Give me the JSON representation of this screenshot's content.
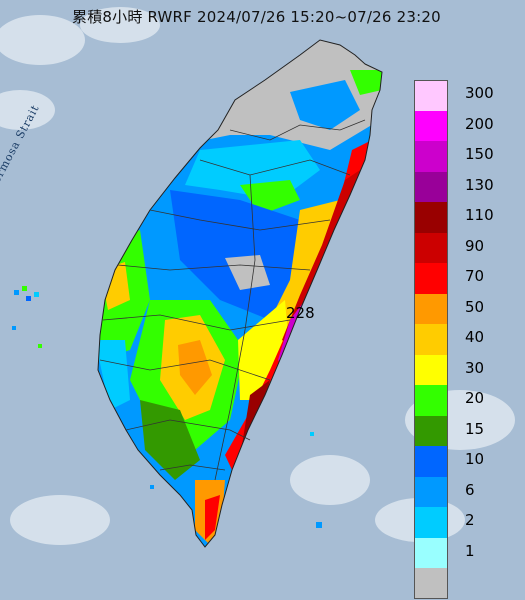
{
  "title": "累積8小時 RWRF 2024/07/26 15:20~07/26 23:20",
  "strait_label": "Formosa Strait",
  "peak_label": "228",
  "legend": [
    {
      "label": "300",
      "color": "#ffc8ff"
    },
    {
      "label": "200",
      "color": "#ff00ff"
    },
    {
      "label": "150",
      "color": "#cc00cc"
    },
    {
      "label": "130",
      "color": "#990099"
    },
    {
      "label": "110",
      "color": "#990000"
    },
    {
      "label": "90",
      "color": "#cc0000"
    },
    {
      "label": "70",
      "color": "#ff0000"
    },
    {
      "label": "50",
      "color": "#ff9900"
    },
    {
      "label": "40",
      "color": "#ffcc00"
    },
    {
      "label": "30",
      "color": "#ffff00"
    },
    {
      "label": "20",
      "color": "#33ff00"
    },
    {
      "label": "15",
      "color": "#339900"
    },
    {
      "label": "10",
      "color": "#0066ff"
    },
    {
      "label": "6",
      "color": "#0099ff"
    },
    {
      "label": "2",
      "color": "#00ccff"
    },
    {
      "label": "1",
      "color": "#99ffff"
    },
    {
      "label": "",
      "color": "#c0c0c0"
    }
  ]
}
